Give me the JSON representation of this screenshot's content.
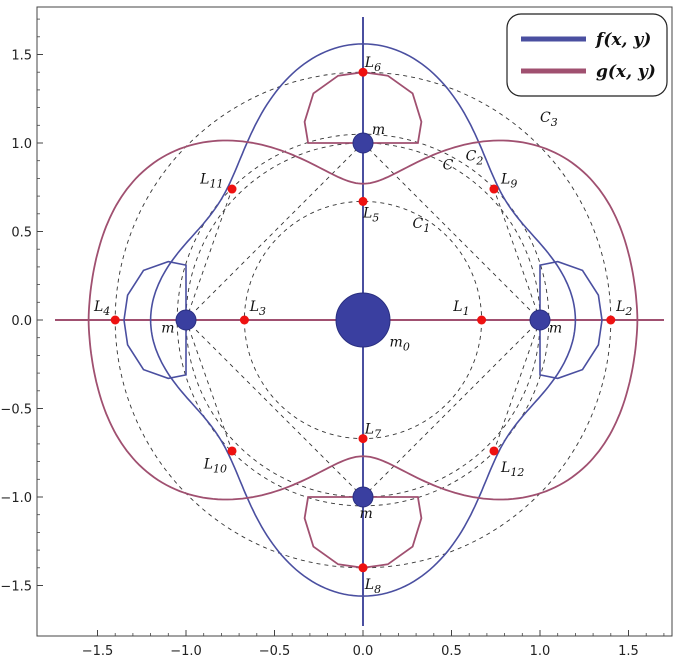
{
  "chart_data": {
    "type": "contour",
    "xlim": [
      -1.75,
      1.75
    ],
    "ylim": [
      -1.75,
      1.75
    ],
    "x_ticks": [
      -1.5,
      -1.0,
      -0.5,
      0.0,
      0.5,
      1.0,
      1.5
    ],
    "y_ticks": [
      -1.5,
      -1.0,
      -0.5,
      0.0,
      0.5,
      1.0,
      1.5
    ],
    "x_tick_labels": [
      "−1.5",
      "−1.0",
      "−0.5",
      "0.0",
      "0.5",
      "1.0",
      "1.5"
    ],
    "y_tick_labels": [
      "−1.5",
      "−1.0",
      "−0.5",
      "0.0",
      "0.5",
      "1.0",
      "1.5"
    ],
    "legend_position": "top-right",
    "series": [
      {
        "name": "f(x, y)",
        "color": "#4a4fa0"
      },
      {
        "name": "g(x, y)",
        "color": "#a05070"
      }
    ],
    "masses": [
      {
        "label": "m₀",
        "x": 0.0,
        "y": 0.0,
        "size": "large"
      },
      {
        "label": "m",
        "x": 1.0,
        "y": 0.0,
        "size": "small"
      },
      {
        "label": "m",
        "x": -1.0,
        "y": 0.0,
        "size": "small"
      },
      {
        "label": "m",
        "x": 0.0,
        "y": 1.0,
        "size": "small"
      },
      {
        "label": "m",
        "x": 0.0,
        "y": -1.0,
        "size": "small"
      }
    ],
    "equilibrium_points": [
      {
        "label": "L₁",
        "x": 0.67,
        "y": 0.0
      },
      {
        "label": "L₂",
        "x": 1.4,
        "y": 0.0
      },
      {
        "label": "L₃",
        "x": -0.67,
        "y": 0.0
      },
      {
        "label": "L₄",
        "x": -1.4,
        "y": 0.0
      },
      {
        "label": "L₅",
        "x": 0.0,
        "y": 0.67
      },
      {
        "label": "L₆",
        "x": 0.0,
        "y": 1.4
      },
      {
        "label": "L₇",
        "x": 0.0,
        "y": -0.67
      },
      {
        "label": "L₈",
        "x": 0.0,
        "y": -1.4
      },
      {
        "label": "L₉",
        "x": 0.74,
        "y": 0.74
      },
      {
        "label": "L₁₀",
        "x": -0.74,
        "y": -0.74
      },
      {
        "label": "L₁₁",
        "x": -0.74,
        "y": 0.74
      },
      {
        "label": "L₁₂",
        "x": 0.74,
        "y": -0.74
      }
    ],
    "dashed_circles": [
      {
        "label": "C₁",
        "radius": 0.67
      },
      {
        "label": "C",
        "radius": 1.0
      },
      {
        "label": "C₂",
        "radius": 1.05
      },
      {
        "label": "C₃",
        "radius": 1.4
      }
    ]
  }
}
